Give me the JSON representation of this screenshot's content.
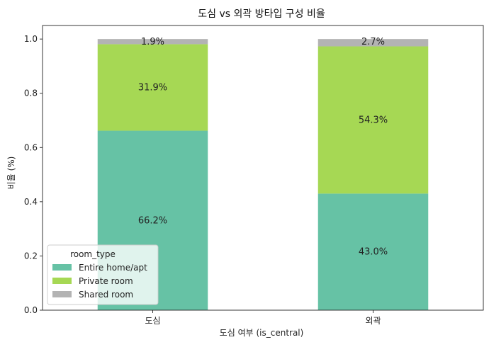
{
  "chart_data": {
    "type": "bar",
    "stacked": true,
    "title": "도심 vs 외곽 방타입 구성 비율",
    "xlabel": "도심 여부 (is_central)",
    "ylabel": "비율 (%)",
    "categories": [
      "도심",
      "외곽"
    ],
    "ylim": [
      0,
      1.05
    ],
    "yticks": [
      "0.0",
      "0.2",
      "0.4",
      "0.6",
      "0.8",
      "1.0"
    ],
    "ytick_values": [
      0,
      0.2,
      0.4,
      0.6,
      0.8,
      1.0
    ],
    "grid": false,
    "legend": {
      "title": "room_type",
      "placement": "lower-left"
    },
    "series": [
      {
        "name": "Entire home/apt",
        "color": "#66c2a5",
        "values": [
          0.662,
          0.43
        ],
        "labels": [
          "66.2%",
          "43.0%"
        ]
      },
      {
        "name": "Private room",
        "color": "#a6d854",
        "values": [
          0.319,
          0.543
        ],
        "labels": [
          "31.9%",
          "54.3%"
        ]
      },
      {
        "name": "Shared room",
        "color": "#b3b3b3",
        "values": [
          0.019,
          0.027
        ],
        "labels": [
          "1.9%",
          "2.7%"
        ]
      }
    ]
  }
}
